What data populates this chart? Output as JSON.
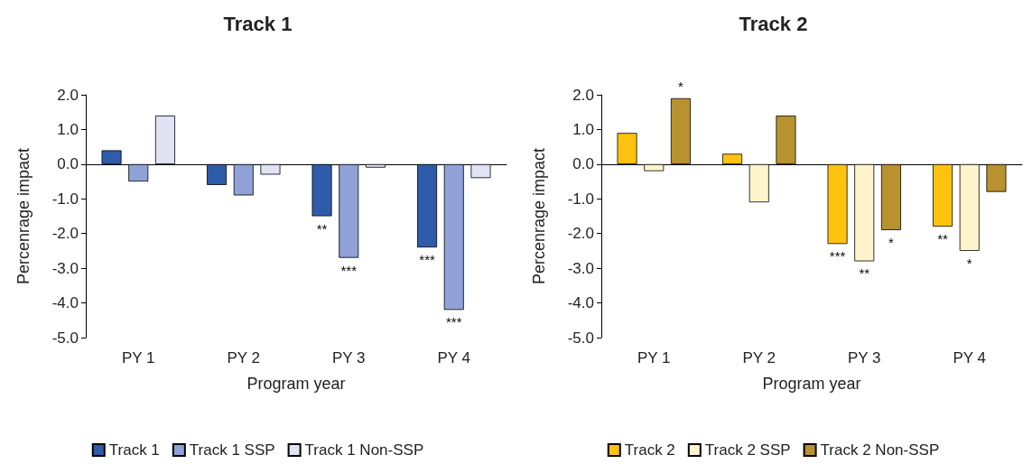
{
  "chart_data": [
    {
      "type": "bar",
      "title": "Track 1",
      "xlabel": "Program year",
      "ylabel": "Percenrage impact",
      "categories": [
        "PY 1",
        "PY 2",
        "PY 3",
        "PY 4"
      ],
      "series": [
        {
          "name": "Track 1",
          "color": "#2f5caa",
          "values": [
            0.4,
            -0.6,
            -1.5,
            -2.4
          ],
          "value_labels": [
            null,
            null,
            "**",
            "***"
          ]
        },
        {
          "name": "Track 1 SSP",
          "color": "#8fa1d6",
          "values": [
            -0.5,
            -0.9,
            -2.7,
            -4.2
          ],
          "value_labels": [
            null,
            null,
            "***",
            "***"
          ]
        },
        {
          "name": "Track 1 Non-SSP",
          "color": "#dfe3f3",
          "values": [
            1.4,
            -0.3,
            -0.1,
            -0.4
          ]
        }
      ],
      "ylim": [
        -5,
        2
      ],
      "yticks": [
        {
          "value": -5,
          "label": "-5.0"
        },
        {
          "value": -4,
          "label": "-4.0"
        },
        {
          "value": -3,
          "label": "-3.0"
        },
        {
          "value": -2,
          "label": "-2.0"
        },
        {
          "value": -1,
          "label": "-1.0"
        },
        {
          "value": 0,
          "label": "0.0"
        },
        {
          "value": 1,
          "label": "1.0"
        },
        {
          "value": 2,
          "label": "2.0"
        }
      ],
      "legend": "bottom"
    },
    {
      "type": "bar",
      "title": "Track 2",
      "xlabel": "Program year",
      "ylabel": "Percenrage impact",
      "categories": [
        "PY 1",
        "PY 2",
        "PY 3",
        "PY 4"
      ],
      "series": [
        {
          "name": "Track 2",
          "color": "#ffc20e",
          "values": [
            0.9,
            0.3,
            -2.3,
            -1.8
          ],
          "value_labels": [
            null,
            null,
            "***",
            "**"
          ]
        },
        {
          "name": "Track 2 SSP",
          "color": "#fff4cc",
          "values": [
            -0.2,
            -1.1,
            -2.8,
            -2.5
          ],
          "value_labels": [
            null,
            null,
            "**",
            "*"
          ]
        },
        {
          "name": "Track 2 Non-SSP",
          "color": "#b8922e",
          "values": [
            1.9,
            1.4,
            -1.9,
            -0.8
          ],
          "value_labels": [
            "*",
            null,
            "*",
            null
          ]
        }
      ],
      "ylim": [
        -5,
        2
      ],
      "yticks": [
        {
          "value": -5,
          "label": "-5.0"
        },
        {
          "value": -4,
          "label": "-4.0"
        },
        {
          "value": -3,
          "label": "-3.0"
        },
        {
          "value": -2,
          "label": "-2.0"
        },
        {
          "value": -1,
          "label": "-1.0"
        },
        {
          "value": 0,
          "label": "0.0"
        },
        {
          "value": 1,
          "label": "1.0"
        },
        {
          "value": 2,
          "label": "2.0"
        }
      ],
      "legend": "bottom"
    }
  ]
}
